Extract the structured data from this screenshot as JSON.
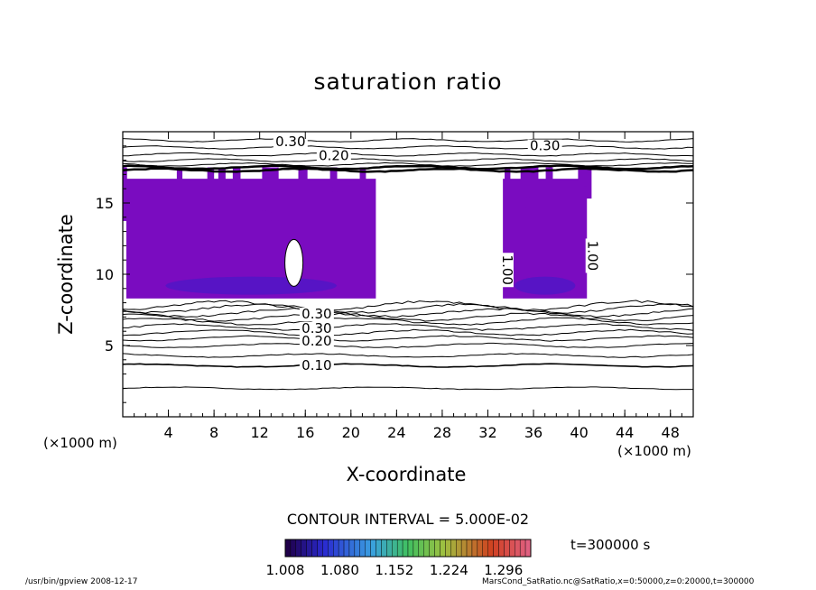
{
  "chart_data": {
    "type": "heatmap",
    "title": "saturation ratio",
    "xlabel": "X-coordinate",
    "ylabel": "Z-coordinate",
    "x_unit": "(×1000 m)",
    "y_unit": "(×1000 m)",
    "xlim": [
      0,
      50
    ],
    "ylim": [
      0,
      20
    ],
    "x_ticks": [
      "4",
      "8",
      "12",
      "16",
      "20",
      "24",
      "28",
      "32",
      "36",
      "40",
      "44",
      "48"
    ],
    "y_ticks": [
      "5",
      "10",
      "15"
    ],
    "contour_interval_label": "CONTOUR INTERVAL = 5.000E-02",
    "contour_labels": [
      {
        "text": "0.30",
        "x": 14.7,
        "z": 19.0
      },
      {
        "text": "0.20",
        "x": 18.5,
        "z": 18.0
      },
      {
        "text": "0.30",
        "x": 37.0,
        "z": 18.7
      },
      {
        "text": "0.30",
        "x": 17.0,
        "z": 6.9
      },
      {
        "text": "0.30",
        "x": 17.0,
        "z": 5.9
      },
      {
        "text": "0.20",
        "x": 17.0,
        "z": 5.0
      },
      {
        "text": "0.10",
        "x": 17.0,
        "z": 3.3
      },
      {
        "text": "1.00",
        "x": 33.3,
        "z": 10.3
      },
      {
        "text": "1.00",
        "x": 40.8,
        "z": 11.3
      }
    ],
    "supersaturated_regions_x": [
      [
        0,
        22.5
      ],
      [
        33,
        41
      ]
    ],
    "supersaturated_regions_z": [
      8,
      17.5
    ],
    "colorbar": {
      "ticks": [
        "1.008",
        "1.080",
        "1.152",
        "1.224",
        "1.296"
      ],
      "min": 1.008,
      "max": 1.332
    },
    "time_label": "t=300000  s"
  },
  "footer": {
    "left": "/usr/bin/gpview   2008-12-17",
    "right": "MarsCond_SatRatio.nc@SatRatio,x=0:50000,z=0:20000,t=300000"
  }
}
